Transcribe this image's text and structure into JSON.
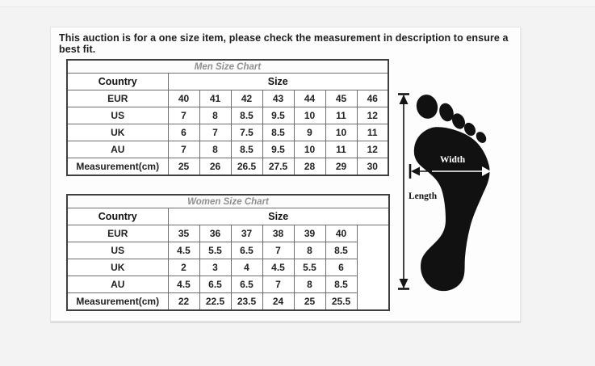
{
  "page": {
    "notice": "This auction is for a one size item, please check the measurement in description to ensure a best fit."
  },
  "men_table": {
    "title": "Men Size Chart",
    "country_header": "Country",
    "size_header": "Size",
    "rows": [
      {
        "label": "EUR",
        "values": [
          "40",
          "41",
          "42",
          "43",
          "44",
          "45",
          "46"
        ]
      },
      {
        "label": "US",
        "values": [
          "7",
          "8",
          "8.5",
          "9.5",
          "10",
          "11",
          "12"
        ]
      },
      {
        "label": "UK",
        "values": [
          "6",
          "7",
          "7.5",
          "8.5",
          "9",
          "10",
          "11"
        ]
      },
      {
        "label": "AU",
        "values": [
          "7",
          "8",
          "8.5",
          "9.5",
          "10",
          "11",
          "12"
        ]
      },
      {
        "label": "Measurement(cm)",
        "values": [
          "25",
          "26",
          "26.5",
          "27.5",
          "28",
          "29",
          "30"
        ]
      }
    ],
    "trailing_empty_column": false
  },
  "women_table": {
    "title": "Women Size Chart",
    "country_header": "Country",
    "size_header": "Size",
    "rows": [
      {
        "label": "EUR",
        "values": [
          "35",
          "36",
          "37",
          "38",
          "39",
          "40"
        ]
      },
      {
        "label": "US",
        "values": [
          "4.5",
          "5.5",
          "6.5",
          "7",
          "8",
          "8.5"
        ]
      },
      {
        "label": "UK",
        "values": [
          "2",
          "3",
          "4",
          "4.5",
          "5.5",
          "6"
        ]
      },
      {
        "label": "AU",
        "values": [
          "4.5",
          "6.5",
          "6.5",
          "7",
          "8",
          "8.5"
        ]
      },
      {
        "label": "Measurement(cm)",
        "values": [
          "22",
          "22.5",
          "23.5",
          "24",
          "25",
          "25.5"
        ]
      }
    ],
    "trailing_empty_column": true
  },
  "diagram": {
    "width_label": "Width",
    "length_label": "Length"
  },
  "colors": {
    "background": "#f4f3f3",
    "panel": "#fdfdfd",
    "foot": "#111111",
    "table_outer_border": "#3f3f3f",
    "table_inner_border": "#6e6e6e",
    "title_text": "#8f8f8f",
    "notice_text": "#1d1d1d"
  },
  "chart_data": [
    {
      "type": "table",
      "title": "Men Size Chart",
      "header": [
        "Country",
        "Size"
      ],
      "rows": [
        [
          "EUR",
          "40",
          "41",
          "42",
          "43",
          "44",
          "45",
          "46"
        ],
        [
          "US",
          "7",
          "8",
          "8.5",
          "9.5",
          "10",
          "11",
          "12"
        ],
        [
          "UK",
          "6",
          "7",
          "7.5",
          "8.5",
          "9",
          "10",
          "11"
        ],
        [
          "AU",
          "7",
          "8",
          "8.5",
          "9.5",
          "10",
          "11",
          "12"
        ],
        [
          "Measurement(cm)",
          "25",
          "26",
          "26.5",
          "27.5",
          "28",
          "29",
          "30"
        ]
      ]
    },
    {
      "type": "table",
      "title": "Women Size Chart",
      "header": [
        "Country",
        "Size"
      ],
      "rows": [
        [
          "EUR",
          "35",
          "36",
          "37",
          "38",
          "39",
          "40"
        ],
        [
          "US",
          "4.5",
          "5.5",
          "6.5",
          "7",
          "8",
          "8.5"
        ],
        [
          "UK",
          "2",
          "3",
          "4",
          "4.5",
          "5.5",
          "6"
        ],
        [
          "AU",
          "4.5",
          "6.5",
          "6.5",
          "7",
          "8",
          "8.5"
        ],
        [
          "Measurement(cm)",
          "22",
          "22.5",
          "23.5",
          "24",
          "25",
          "25.5"
        ]
      ]
    }
  ]
}
